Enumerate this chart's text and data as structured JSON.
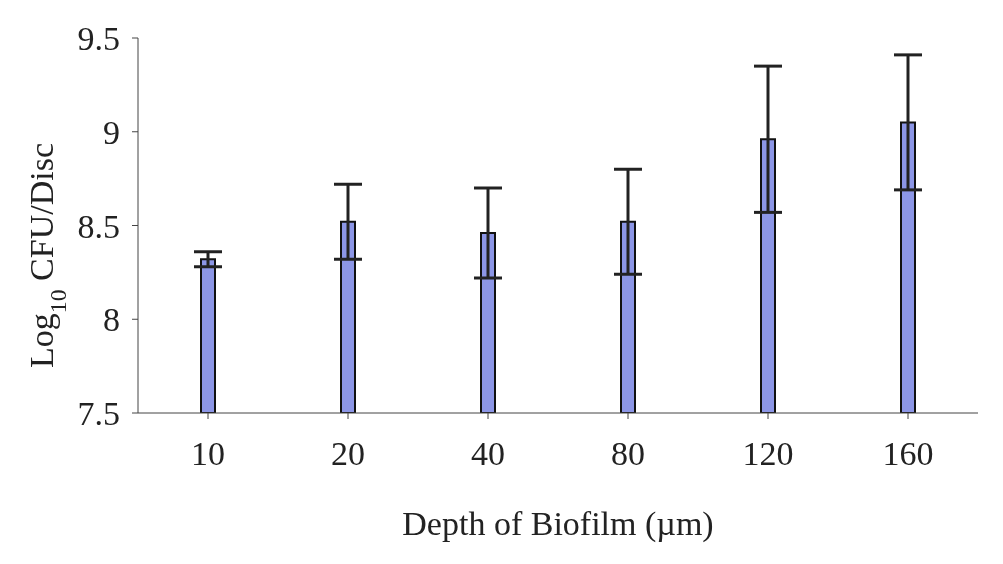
{
  "chart_data": {
    "type": "bar",
    "xlabel": "Depth of Biofilm (µm)",
    "ylabel": "Log$_{10}$ CFU/Disc",
    "categories": [
      "10",
      "20",
      "40",
      "80",
      "120",
      "160"
    ],
    "values": [
      8.32,
      8.52,
      8.46,
      8.52,
      8.96,
      9.05
    ],
    "errors": [
      0.04,
      0.2,
      0.24,
      0.28,
      0.39,
      0.36
    ],
    "color": "#8c96e6",
    "ylim": [
      7.5,
      9.5
    ],
    "yticks": [
      7.5,
      8,
      8.5,
      9,
      9.5
    ],
    "grid": false,
    "legend": false
  }
}
